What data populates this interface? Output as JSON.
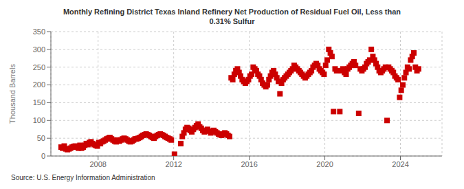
{
  "chart_data": {
    "type": "scatter",
    "title": "Monthly Refining District Texas Inland Refinery Net Production of Residual Fuel Oil, Less than\n0.31% Sulfur",
    "ylabel": "Thousand Barrels",
    "annotations": [
      "Source: U.S. Energy Information Administration"
    ],
    "color": "#cc0000",
    "marker": "square",
    "grid": true,
    "xlim": [
      2005.5,
      2026.2
    ],
    "xticks": [
      2008,
      2012,
      2016,
      2020,
      2024
    ],
    "ylim": [
      0,
      350
    ],
    "yticks": [
      0,
      50,
      100,
      150,
      200,
      250,
      300,
      350
    ],
    "x": [
      2006.041667,
      2006.125,
      2006.208333,
      2006.291667,
      2006.375,
      2006.458333,
      2006.541667,
      2006.625,
      2006.708333,
      2006.791667,
      2006.875,
      2006.958333,
      2007.041667,
      2007.125,
      2007.208333,
      2007.291667,
      2007.375,
      2007.458333,
      2007.541667,
      2007.625,
      2007.708333,
      2007.791667,
      2007.875,
      2007.958333,
      2008.041667,
      2008.125,
      2008.208333,
      2008.291667,
      2008.375,
      2008.458333,
      2008.541667,
      2008.625,
      2008.708333,
      2008.791667,
      2008.875,
      2008.958333,
      2009.041667,
      2009.125,
      2009.208333,
      2009.291667,
      2009.375,
      2009.458333,
      2009.541667,
      2009.625,
      2009.708333,
      2009.791667,
      2009.875,
      2009.958333,
      2010.041667,
      2010.125,
      2010.208333,
      2010.291667,
      2010.375,
      2010.458333,
      2010.541667,
      2010.625,
      2010.708333,
      2010.791667,
      2010.875,
      2010.958333,
      2011.041667,
      2011.125,
      2011.208333,
      2011.291667,
      2011.375,
      2011.458333,
      2011.541667,
      2011.625,
      2011.708333,
      2011.791667,
      2011.875,
      2012.041667,
      2012.375,
      2012.458333,
      2012.541667,
      2012.625,
      2012.708333,
      2012.791667,
      2012.875,
      2012.958333,
      2013.041667,
      2013.125,
      2013.208333,
      2013.291667,
      2013.375,
      2013.458333,
      2013.541667,
      2013.625,
      2013.708333,
      2013.791667,
      2013.875,
      2013.958333,
      2014.041667,
      2014.125,
      2014.208333,
      2014.291667,
      2014.375,
      2014.458333,
      2014.541667,
      2014.625,
      2014.708333,
      2014.791667,
      2014.875,
      2014.958333,
      2015.041667,
      2015.125,
      2015.208333,
      2015.291667,
      2015.375,
      2015.458333,
      2015.541667,
      2015.625,
      2015.708333,
      2015.791667,
      2015.875,
      2015.958333,
      2016.041667,
      2016.125,
      2016.208333,
      2016.291667,
      2016.375,
      2016.458333,
      2016.541667,
      2016.625,
      2016.708333,
      2016.791667,
      2016.875,
      2016.958333,
      2017.041667,
      2017.125,
      2017.208333,
      2017.291667,
      2017.375,
      2017.458333,
      2017.541667,
      2017.625,
      2017.708333,
      2017.791667,
      2017.875,
      2017.958333,
      2018.041667,
      2018.125,
      2018.208333,
      2018.291667,
      2018.375,
      2018.458333,
      2018.541667,
      2018.625,
      2018.708333,
      2018.791667,
      2018.875,
      2018.958333,
      2019.041667,
      2019.125,
      2019.208333,
      2019.291667,
      2019.375,
      2019.458333,
      2019.541667,
      2019.625,
      2019.708333,
      2019.791667,
      2019.875,
      2019.958333,
      2020.041667,
      2020.125,
      2020.208333,
      2020.291667,
      2020.375,
      2020.458333,
      2020.541667,
      2020.625,
      2020.791667,
      2020.875,
      2020.958333,
      2021.041667,
      2021.125,
      2021.208333,
      2021.291667,
      2021.375,
      2021.458333,
      2021.541667,
      2021.625,
      2021.791667,
      2021.875,
      2021.958333,
      2022.041667,
      2022.125,
      2022.208333,
      2022.291667,
      2022.375,
      2022.458333,
      2022.541667,
      2022.625,
      2022.708333,
      2022.791667,
      2022.875,
      2022.958333,
      2023.041667,
      2023.125,
      2023.208333,
      2023.291667,
      2023.375,
      2023.458333,
      2023.541667,
      2023.625,
      2023.708333,
      2023.791667,
      2023.875,
      2023.958333,
      2024.041667,
      2024.125,
      2024.208333,
      2024.291667,
      2024.375,
      2024.458333,
      2024.541667,
      2024.625,
      2024.708333,
      2024.791667,
      2024.875,
      2024.958333
    ],
    "values": [
      25,
      22,
      28,
      20,
      18,
      20,
      22,
      25,
      27,
      28,
      25,
      22,
      30,
      22,
      25,
      30,
      35,
      32,
      38,
      40,
      35,
      32,
      30,
      28,
      38,
      35,
      40,
      42,
      45,
      48,
      50,
      52,
      48,
      45,
      42,
      40,
      45,
      42,
      45,
      48,
      50,
      48,
      45,
      42,
      40,
      42,
      45,
      48,
      48,
      50,
      52,
      55,
      58,
      60,
      62,
      60,
      58,
      55,
      52,
      50,
      55,
      58,
      60,
      62,
      60,
      58,
      55,
      52,
      50,
      48,
      45,
      5,
      35,
      55,
      65,
      75,
      80,
      78,
      72,
      68,
      75,
      80,
      85,
      90,
      82,
      78,
      72,
      68,
      72,
      75,
      70,
      65,
      70,
      72,
      68,
      65,
      62,
      60,
      58,
      62,
      65,
      62,
      58,
      55,
      220,
      215,
      230,
      240,
      245,
      235,
      225,
      215,
      210,
      205,
      210,
      215,
      225,
      230,
      250,
      245,
      240,
      230,
      225,
      215,
      205,
      200,
      195,
      200,
      215,
      225,
      235,
      240,
      230,
      220,
      210,
      175,
      205,
      215,
      220,
      225,
      230,
      235,
      240,
      245,
      255,
      250,
      245,
      240,
      235,
      230,
      225,
      220,
      225,
      230,
      235,
      240,
      250,
      255,
      260,
      255,
      245,
      240,
      235,
      230,
      255,
      270,
      300,
      290,
      280,
      125,
      245,
      240,
      125,
      240,
      245,
      235,
      230,
      245,
      250,
      255,
      260,
      265,
      255,
      120,
      245,
      240,
      245,
      250,
      260,
      265,
      270,
      300,
      280,
      270,
      260,
      250,
      240,
      235,
      240,
      245,
      250,
      100,
      250,
      245,
      240,
      235,
      225,
      220,
      215,
      165,
      185,
      200,
      220,
      235,
      250,
      245,
      270,
      280,
      290,
      250,
      240,
      245
    ]
  }
}
